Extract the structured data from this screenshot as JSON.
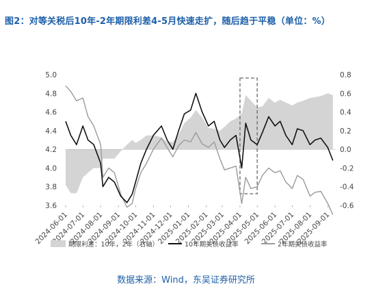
{
  "title": "图2：对等关税后10年-2年期限利差4-5月快速走扩，随后趋于平稳（单位：%）",
  "source": "数据来源：Wind，东吴证券研究所",
  "colors": {
    "title": "#1d5fa8",
    "spread_area": "#d4d4d4",
    "ten_year_line": "#111111",
    "two_year_line": "#9a9a9a",
    "highlight_box": "#666666"
  },
  "chart_data": {
    "type": "line",
    "title": "",
    "x_ticks": [
      "2024-06-01",
      "2024-07-01",
      "2024-08-01",
      "2024-09-01",
      "2024-10-01",
      "2024-11-01",
      "2024-12-01",
      "2025-01-01",
      "2025-02-01",
      "2025-03-01",
      "2025-04-01",
      "2025-05-01",
      "2025-06-01",
      "2025-07-01",
      "2025-08-01",
      "2025-09-01"
    ],
    "x_range": [
      "2024-06-01",
      "2025-09-15"
    ],
    "y_left": {
      "ticks": [
        "3.6",
        "3.8",
        "4.0",
        "4.2",
        "4.4",
        "4.6",
        "4.8",
        "5.0"
      ],
      "range": [
        3.6,
        5.0
      ]
    },
    "y_right": {
      "ticks": [
        "-0.6",
        "-0.4",
        "-0.2",
        "0.0",
        "0.2",
        "0.4",
        "0.6",
        "0.8"
      ],
      "range": [
        -0.6,
        0.8
      ]
    },
    "legend": [
      "期限利差：10年，2年（右轴）",
      "10年期美债收益率",
      "2年期美债收益率"
    ],
    "legend_position": "bottom",
    "highlight": {
      "x_start": "2025-04-01",
      "x_end": "2025-05-01",
      "style": "dashed box"
    },
    "series": [
      {
        "name": "10年期美债收益率",
        "axis": "left",
        "style": "solid black line",
        "x": [
          "2024-06-01",
          "2024-06-10",
          "2024-06-20",
          "2024-07-01",
          "2024-07-10",
          "2024-07-20",
          "2024-08-01",
          "2024-08-05",
          "2024-08-15",
          "2024-08-25",
          "2024-09-05",
          "2024-09-16",
          "2024-09-25",
          "2024-10-01",
          "2024-10-10",
          "2024-10-20",
          "2024-11-01",
          "2024-11-15",
          "2024-11-25",
          "2024-12-05",
          "2024-12-15",
          "2024-12-25",
          "2025-01-05",
          "2025-01-14",
          "2025-01-25",
          "2025-02-05",
          "2025-02-15",
          "2025-02-25",
          "2025-03-05",
          "2025-03-15",
          "2025-03-25",
          "2025-04-04",
          "2025-04-11",
          "2025-04-20",
          "2025-05-01",
          "2025-05-10",
          "2025-05-21",
          "2025-06-01",
          "2025-06-10",
          "2025-06-20",
          "2025-07-01",
          "2025-07-10",
          "2025-07-20",
          "2025-08-01",
          "2025-08-10",
          "2025-08-20",
          "2025-09-01",
          "2025-09-10"
        ],
        "values": [
          4.5,
          4.35,
          4.25,
          4.45,
          4.3,
          4.25,
          4.05,
          3.8,
          3.9,
          3.85,
          3.7,
          3.63,
          3.72,
          3.85,
          4.05,
          4.2,
          4.35,
          4.45,
          4.3,
          4.2,
          4.4,
          4.58,
          4.62,
          4.8,
          4.6,
          4.45,
          4.5,
          4.3,
          4.22,
          4.3,
          4.35,
          4.0,
          4.48,
          4.3,
          4.25,
          4.38,
          4.55,
          4.45,
          4.5,
          4.35,
          4.25,
          4.42,
          4.4,
          4.25,
          4.3,
          4.32,
          4.22,
          4.08
        ]
      },
      {
        "name": "2年期美债收益率",
        "axis": "left",
        "style": "solid gray line",
        "x": [
          "2024-06-01",
          "2024-06-10",
          "2024-06-20",
          "2024-07-01",
          "2024-07-10",
          "2024-07-20",
          "2024-08-01",
          "2024-08-05",
          "2024-08-15",
          "2024-08-25",
          "2024-09-05",
          "2024-09-16",
          "2024-09-25",
          "2024-10-01",
          "2024-10-10",
          "2024-10-20",
          "2024-11-01",
          "2024-11-15",
          "2024-11-25",
          "2024-12-05",
          "2024-12-15",
          "2024-12-25",
          "2025-01-05",
          "2025-01-14",
          "2025-01-25",
          "2025-02-05",
          "2025-02-15",
          "2025-02-25",
          "2025-03-05",
          "2025-03-15",
          "2025-03-25",
          "2025-04-04",
          "2025-04-11",
          "2025-04-20",
          "2025-05-01",
          "2025-05-10",
          "2025-05-21",
          "2025-06-01",
          "2025-06-10",
          "2025-06-20",
          "2025-07-01",
          "2025-07-10",
          "2025-07-20",
          "2025-08-01",
          "2025-08-10",
          "2025-08-20",
          "2025-09-01",
          "2025-09-10"
        ],
        "values": [
          4.88,
          4.82,
          4.72,
          4.75,
          4.55,
          4.45,
          4.25,
          3.9,
          4.0,
          3.95,
          3.72,
          3.58,
          3.62,
          3.78,
          3.95,
          4.05,
          4.2,
          4.32,
          4.22,
          4.12,
          4.24,
          4.3,
          4.28,
          4.38,
          4.26,
          4.22,
          4.28,
          4.1,
          3.98,
          4.0,
          4.02,
          3.62,
          3.9,
          3.78,
          3.8,
          3.92,
          4.0,
          3.95,
          3.97,
          3.85,
          3.78,
          3.92,
          3.88,
          3.7,
          3.74,
          3.75,
          3.62,
          3.5
        ]
      },
      {
        "name": "期限利差：10年，2年（右轴）",
        "axis": "right",
        "style": "gray filled area",
        "x": [
          "2024-06-01",
          "2024-06-10",
          "2024-06-20",
          "2024-07-01",
          "2024-07-10",
          "2024-07-20",
          "2024-08-01",
          "2024-08-05",
          "2024-08-15",
          "2024-08-25",
          "2024-09-05",
          "2024-09-16",
          "2024-09-25",
          "2024-10-01",
          "2024-10-10",
          "2024-10-20",
          "2024-11-01",
          "2024-11-15",
          "2024-11-25",
          "2024-12-05",
          "2024-12-15",
          "2024-12-25",
          "2025-01-05",
          "2025-01-14",
          "2025-01-25",
          "2025-02-05",
          "2025-02-15",
          "2025-02-25",
          "2025-03-05",
          "2025-03-15",
          "2025-03-25",
          "2025-04-04",
          "2025-04-11",
          "2025-04-20",
          "2025-05-01",
          "2025-05-10",
          "2025-05-21",
          "2025-06-01",
          "2025-06-10",
          "2025-06-20",
          "2025-07-01",
          "2025-07-10",
          "2025-07-20",
          "2025-08-01",
          "2025-08-10",
          "2025-08-20",
          "2025-09-01",
          "2025-09-10"
        ],
        "values": [
          -0.38,
          -0.47,
          -0.47,
          -0.3,
          -0.25,
          -0.2,
          -0.2,
          -0.1,
          -0.1,
          -0.1,
          -0.02,
          0.05,
          0.1,
          0.07,
          0.1,
          0.15,
          0.15,
          0.13,
          0.08,
          0.08,
          0.16,
          0.28,
          0.34,
          0.42,
          0.34,
          0.23,
          0.22,
          0.2,
          0.24,
          0.3,
          0.33,
          0.38,
          0.58,
          0.52,
          0.45,
          0.46,
          0.55,
          0.5,
          0.53,
          0.5,
          0.47,
          0.5,
          0.52,
          0.55,
          0.56,
          0.57,
          0.6,
          0.58
        ]
      }
    ]
  }
}
